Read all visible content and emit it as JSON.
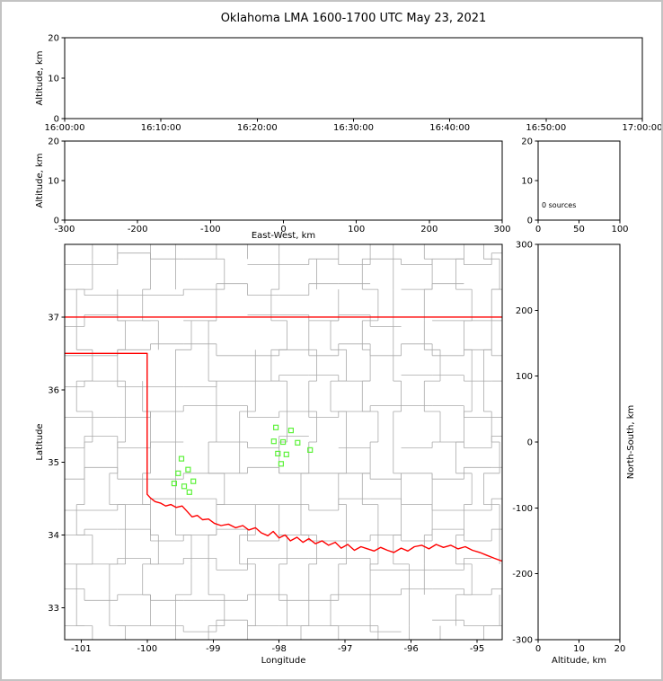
{
  "title": "Oklahoma LMA 1600-1700 UTC May 23, 2021",
  "colors": {
    "background": "#ffffff",
    "figure_frame": "#c3c3c3",
    "axis": "#000000",
    "county_lines": "#aaaaaa",
    "state_border": "#ff0000",
    "station_marker": "#5df23a"
  },
  "chart_data": [
    {
      "id": "time_height",
      "type": "scatter",
      "ylabel": "Altitude, km",
      "x_tick_labels": [
        "16:00:00",
        "16:10:00",
        "16:20:00",
        "16:30:00",
        "16:40:00",
        "16:50:00",
        "17:00:00"
      ],
      "ylim": [
        0,
        20
      ],
      "yticks": [
        0,
        10,
        20
      ],
      "points": []
    },
    {
      "id": "ew_height",
      "type": "scatter",
      "xlabel": "East-West, km",
      "ylabel": "Altitude, km",
      "xlim": [
        -300,
        300
      ],
      "xticks": [
        -300,
        -200,
        -100,
        0,
        100,
        200,
        300
      ],
      "ylim": [
        0,
        20
      ],
      "yticks": [
        0,
        10,
        20
      ],
      "points": []
    },
    {
      "id": "altitude_histogram",
      "type": "line",
      "annotation": "0 sources",
      "xlim": [
        0,
        100
      ],
      "xticks": [
        0,
        50,
        100
      ],
      "ylim": [
        0,
        20
      ],
      "yticks": [
        0,
        10,
        20
      ],
      "points": []
    },
    {
      "id": "plan_view",
      "type": "scatter",
      "xlabel": "Longitude",
      "ylabel": "Latitude",
      "xlim": [
        -101.25,
        -94.62
      ],
      "xticks": [
        -101,
        -100,
        -99,
        -98,
        -97,
        -96,
        -95
      ],
      "ylim": [
        32.56,
        38.0
      ],
      "yticks": [
        33,
        34,
        35,
        36,
        37
      ],
      "stations": [
        [
          -98.05,
          35.48
        ],
        [
          -97.82,
          35.44
        ],
        [
          -98.08,
          35.29
        ],
        [
          -97.94,
          35.28
        ],
        [
          -97.72,
          35.27
        ],
        [
          -98.02,
          35.12
        ],
        [
          -97.89,
          35.11
        ],
        [
          -97.97,
          34.98
        ],
        [
          -97.53,
          35.17
        ],
        [
          -99.48,
          35.05
        ],
        [
          -99.38,
          34.9
        ],
        [
          -99.53,
          34.85
        ],
        [
          -99.3,
          34.74
        ],
        [
          -99.44,
          34.67
        ],
        [
          -99.59,
          34.71
        ],
        [
          -99.36,
          34.59
        ]
      ],
      "state_border": [
        [
          [
            -101.25,
            37.0
          ],
          [
            -94.62,
            37.0
          ]
        ],
        [
          [
            -101.25,
            36.5
          ],
          [
            -100.0,
            36.5
          ],
          [
            -100.0,
            34.56
          ],
          [
            -99.95,
            34.51
          ],
          [
            -99.88,
            34.46
          ],
          [
            -99.8,
            34.44
          ],
          [
            -99.72,
            34.4
          ],
          [
            -99.64,
            34.42
          ],
          [
            -99.56,
            34.38
          ],
          [
            -99.47,
            34.4
          ],
          [
            -99.4,
            34.33
          ],
          [
            -99.32,
            34.25
          ],
          [
            -99.24,
            34.27
          ],
          [
            -99.16,
            34.21
          ],
          [
            -99.07,
            34.22
          ],
          [
            -98.98,
            34.16
          ],
          [
            -98.88,
            34.13
          ],
          [
            -98.77,
            34.15
          ],
          [
            -98.66,
            34.1
          ],
          [
            -98.55,
            34.13
          ],
          [
            -98.46,
            34.07
          ],
          [
            -98.36,
            34.1
          ],
          [
            -98.27,
            34.03
          ],
          [
            -98.17,
            33.99
          ],
          [
            -98.09,
            34.05
          ],
          [
            -98.0,
            33.96
          ],
          [
            -97.91,
            34.0
          ],
          [
            -97.83,
            33.92
          ],
          [
            -97.73,
            33.97
          ],
          [
            -97.64,
            33.9
          ],
          [
            -97.55,
            33.95
          ],
          [
            -97.45,
            33.88
          ],
          [
            -97.35,
            33.92
          ],
          [
            -97.25,
            33.86
          ],
          [
            -97.15,
            33.9
          ],
          [
            -97.06,
            33.82
          ],
          [
            -96.96,
            33.87
          ],
          [
            -96.86,
            33.79
          ],
          [
            -96.76,
            33.84
          ],
          [
            -96.66,
            33.81
          ],
          [
            -96.56,
            33.78
          ],
          [
            -96.46,
            33.83
          ],
          [
            -96.36,
            33.79
          ],
          [
            -96.26,
            33.76
          ],
          [
            -96.15,
            33.82
          ],
          [
            -96.05,
            33.78
          ],
          [
            -95.95,
            33.84
          ],
          [
            -95.84,
            33.86
          ],
          [
            -95.73,
            33.81
          ],
          [
            -95.62,
            33.87
          ],
          [
            -95.51,
            33.83
          ],
          [
            -95.4,
            33.86
          ],
          [
            -95.29,
            33.81
          ],
          [
            -95.18,
            33.84
          ],
          [
            -95.07,
            33.79
          ],
          [
            -94.96,
            33.76
          ],
          [
            -94.85,
            33.72
          ],
          [
            -94.74,
            33.68
          ],
          [
            -94.62,
            33.64
          ]
        ]
      ],
      "county_grid": {
        "lon_lines": [
          -100.95,
          -100.45,
          -99.95,
          -99.45,
          -98.95,
          -98.48,
          -98.0,
          -97.55,
          -97.1,
          -96.62,
          -96.15,
          -95.68,
          -95.2,
          -94.78
        ],
        "lat_lines": [
          32.75,
          33.18,
          33.6,
          34.0,
          34.42,
          34.85,
          35.28,
          35.7,
          36.12,
          36.55,
          36.95,
          37.38,
          37.8
        ]
      }
    },
    {
      "id": "ns_height",
      "type": "scatter",
      "xlabel": "Altitude, km",
      "ylabel": "North-South, km",
      "xlim": [
        0,
        20
      ],
      "xticks": [
        0,
        10,
        20
      ],
      "ylim": [
        -300,
        300
      ],
      "yticks": [
        -300,
        -200,
        -100,
        0,
        100,
        200,
        300
      ],
      "points": []
    }
  ]
}
